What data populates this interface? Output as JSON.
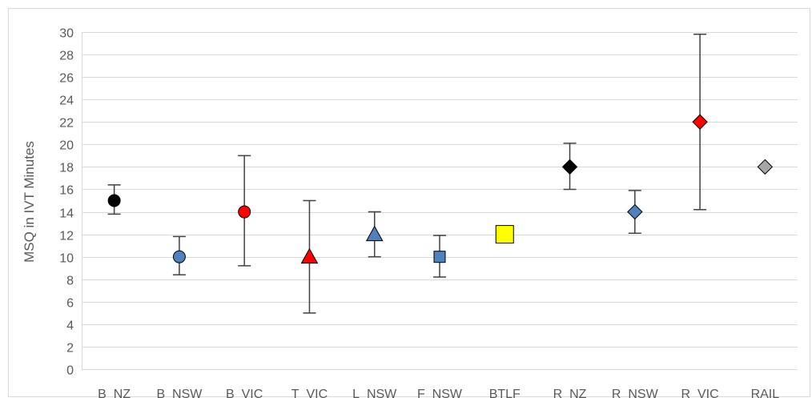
{
  "chart_data": {
    "type": "scatter",
    "ylabel": "MSQ in IVT Minutes",
    "xlabel": "",
    "ylim": [
      0,
      30
    ],
    "ytick_step": 2,
    "grid": true,
    "categories": [
      "B_NZ",
      "B_NSW",
      "B_VIC",
      "T_VIC",
      "L_NSW",
      "F_NSW",
      "BTLF",
      "R_NZ",
      "R_NSW",
      "R_VIC",
      "RAIL"
    ],
    "points": [
      {
        "category": "B_NZ",
        "value": 15,
        "low": 13.8,
        "high": 16.4,
        "marker": "circle",
        "color": "#000000"
      },
      {
        "category": "B_NSW",
        "value": 10,
        "low": 8.4,
        "high": 11.8,
        "marker": "circle",
        "color": "#4f81bd"
      },
      {
        "category": "B_VIC",
        "value": 14,
        "low": 9.2,
        "high": 19.0,
        "marker": "circle",
        "color": "#ff0000"
      },
      {
        "category": "T_VIC",
        "value": 10,
        "low": 5.0,
        "high": 15.0,
        "marker": "triangle",
        "color": "#ff0000"
      },
      {
        "category": "L_NSW",
        "value": 12,
        "low": 10.0,
        "high": 14.0,
        "marker": "triangle",
        "color": "#4f81bd"
      },
      {
        "category": "F_NSW",
        "value": 10,
        "low": 8.2,
        "high": 11.9,
        "marker": "square",
        "color": "#4f81bd"
      },
      {
        "category": "BTLF",
        "value": 12,
        "low": null,
        "high": null,
        "marker": "square",
        "color": "#ffff00"
      },
      {
        "category": "R_NZ",
        "value": 18,
        "low": 16.0,
        "high": 20.1,
        "marker": "diamond",
        "color": "#000000"
      },
      {
        "category": "R_NSW",
        "value": 14,
        "low": 12.1,
        "high": 15.9,
        "marker": "diamond",
        "color": "#4f81bd"
      },
      {
        "category": "R_VIC",
        "value": 22,
        "low": 14.2,
        "high": 29.8,
        "marker": "diamond",
        "color": "#ff0000"
      },
      {
        "category": "RAIL",
        "value": 18,
        "low": null,
        "high": null,
        "marker": "diamond",
        "color": "#a6a6a6"
      }
    ]
  }
}
